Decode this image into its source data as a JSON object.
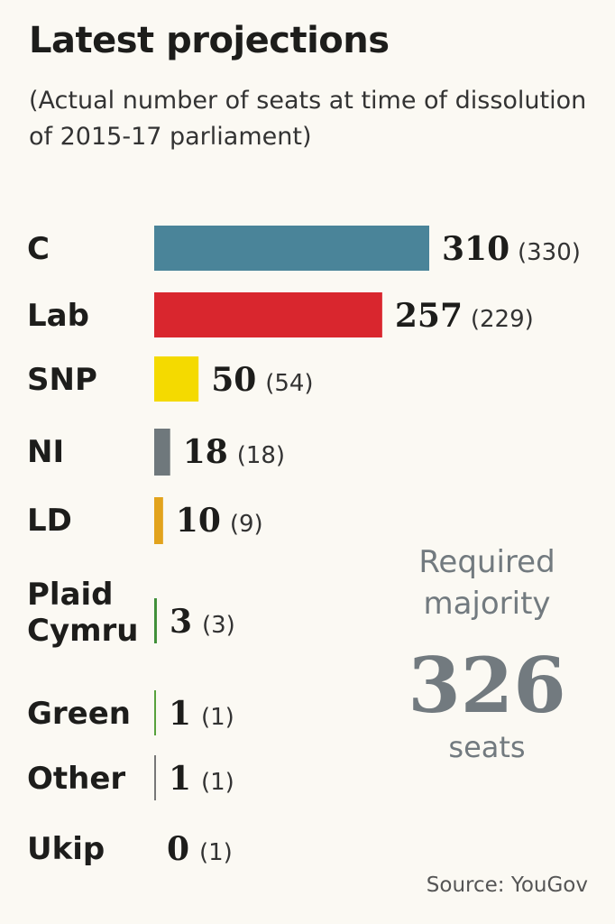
{
  "chart_data": {
    "type": "bar",
    "orientation": "horizontal",
    "title": "Latest projections",
    "subtitle": "(Actual number of seats at time of dissolution of 2015-17 parliament)",
    "categories": [
      "C",
      "Lab",
      "SNP",
      "NI",
      "LD",
      "Plaid Cymru",
      "Green",
      "Other",
      "Ukip"
    ],
    "series": [
      {
        "values": [
          310,
          257,
          50,
          18,
          10,
          3,
          1,
          1,
          0
        ]
      }
    ],
    "previous_values": [
      330,
      229,
      54,
      18,
      9,
      3,
      1,
      1,
      1
    ],
    "colors": [
      "#4a8499",
      "#d9262e",
      "#f4da00",
      "#6f787c",
      "#e2a31c",
      "#3f8f38",
      "#57a13c",
      "#777777",
      "#8b2e8b"
    ],
    "grid": false,
    "legend": "none"
  },
  "majority": {
    "label": "Required majority",
    "value": "326",
    "unit": "seats"
  },
  "source": "Source: YouGov"
}
